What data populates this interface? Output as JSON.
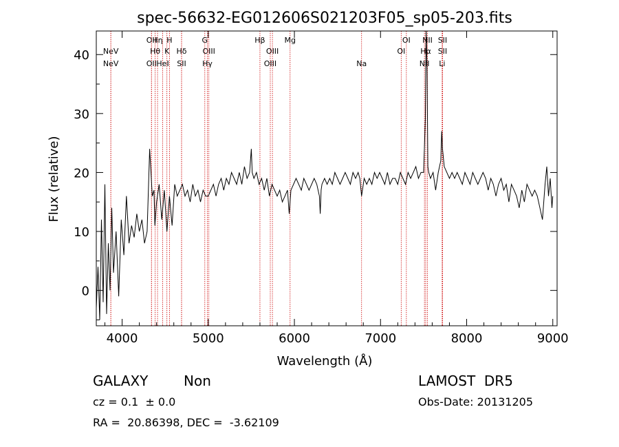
{
  "chart_data": {
    "type": "line",
    "title": "spec-56632-EG012606S021203F05_sp05-203.fits",
    "xlabel": "Wavelength (Å)",
    "ylabel": "Flux (relative)",
    "xlim": [
      3700,
      9050
    ],
    "ylim": [
      -6,
      44
    ],
    "xticks": [
      4000,
      5000,
      6000,
      7000,
      8000,
      9000
    ],
    "yticks": [
      0,
      10,
      20,
      30,
      40
    ],
    "series": [
      {
        "x": [
          3700,
          3720,
          3740,
          3760,
          3780,
          3800,
          3820,
          3840,
          3860,
          3880,
          3900,
          3930,
          3960,
          3990,
          4020,
          4050,
          4080,
          4110,
          4140,
          4170,
          4200,
          4230,
          4260,
          4290,
          4320,
          4350,
          4370,
          4380,
          4400,
          4430,
          4460,
          4490,
          4520,
          4550,
          4580,
          4610,
          4640,
          4670,
          4700,
          4730,
          4760,
          4790,
          4820,
          4850,
          4880,
          4910,
          4940,
          4970,
          5000,
          5030,
          5060,
          5090,
          5120,
          5150,
          5180,
          5210,
          5240,
          5270,
          5300,
          5330,
          5360,
          5390,
          5420,
          5450,
          5480,
          5500,
          5510,
          5530,
          5560,
          5590,
          5620,
          5650,
          5680,
          5710,
          5740,
          5770,
          5800,
          5830,
          5860,
          5890,
          5920,
          5940,
          5960,
          5990,
          6020,
          6050,
          6080,
          6110,
          6140,
          6170,
          6200,
          6230,
          6260,
          6290,
          6300,
          6310,
          6320,
          6350,
          6380,
          6410,
          6440,
          6470,
          6500,
          6530,
          6560,
          6590,
          6620,
          6650,
          6680,
          6710,
          6740,
          6760,
          6780,
          6810,
          6840,
          6870,
          6900,
          6930,
          6960,
          6990,
          7020,
          7050,
          7080,
          7110,
          7140,
          7170,
          7200,
          7230,
          7260,
          7290,
          7320,
          7350,
          7380,
          7410,
          7440,
          7470,
          7500,
          7520,
          7530,
          7540,
          7550,
          7560,
          7580,
          7610,
          7640,
          7670,
          7700,
          7710,
          7720,
          7740,
          7770,
          7800,
          7830,
          7860,
          7890,
          7920,
          7950,
          7980,
          8010,
          8040,
          8070,
          8100,
          8130,
          8160,
          8190,
          8220,
          8250,
          8280,
          8310,
          8340,
          8370,
          8400,
          8430,
          8460,
          8490,
          8520,
          8550,
          8580,
          8610,
          8640,
          8670,
          8700,
          8730,
          8760,
          8790,
          8820,
          8850,
          8880,
          8910,
          8930,
          8950,
          8970,
          8990,
          9000
        ],
        "values": [
          -3,
          4,
          -5,
          12,
          -2,
          18,
          -4,
          8,
          0,
          14,
          3,
          10,
          -1,
          12,
          6,
          16,
          8,
          11,
          9,
          13,
          10,
          12,
          8,
          10,
          24,
          16,
          17,
          11,
          15,
          18,
          12,
          17,
          10,
          16,
          11,
          18,
          16,
          17,
          18,
          16,
          17,
          15,
          18,
          16,
          17,
          15,
          17,
          16,
          16,
          17,
          18,
          16,
          18,
          19,
          17,
          19,
          18,
          20,
          19,
          18,
          20,
          18,
          21,
          19,
          20,
          24,
          20,
          19,
          20,
          18,
          19,
          17,
          19,
          16,
          18,
          17,
          16,
          17,
          15,
          16,
          17,
          13,
          17,
          18,
          19,
          18,
          17,
          19,
          18,
          17,
          18,
          19,
          18,
          16,
          13,
          17,
          18,
          19,
          18,
          19,
          18,
          20,
          19,
          18,
          19,
          20,
          19,
          18,
          20,
          19,
          20,
          19,
          16,
          19,
          18,
          19,
          18,
          20,
          19,
          20,
          19,
          18,
          20,
          18,
          19,
          19,
          18,
          20,
          19,
          18,
          20,
          19,
          20,
          21,
          19,
          20,
          20,
          29,
          46,
          38,
          21,
          20,
          19,
          20,
          17,
          20,
          22,
          27,
          24,
          21,
          20,
          19,
          20,
          19,
          20,
          19,
          18,
          20,
          19,
          18,
          20,
          19,
          18,
          19,
          20,
          19,
          17,
          19,
          18,
          16,
          18,
          19,
          17,
          18,
          15,
          18,
          17,
          16,
          14,
          17,
          15,
          18,
          17,
          16,
          17,
          16,
          14,
          12,
          18,
          21,
          16,
          19,
          14,
          16
        ]
      }
    ],
    "line_markers": [
      {
        "wavelength": 3869,
        "label": "NeV",
        "row": 1
      },
      {
        "wavelength": 3869,
        "label": "NeV",
        "row": 2
      },
      {
        "wavelength": 4341,
        "label": "OII",
        "row": 0
      },
      {
        "wavelength": 4341,
        "label": "OII",
        "row": 2
      },
      {
        "wavelength": 4384,
        "label": "Hθ",
        "row": 1
      },
      {
        "wavelength": 4411,
        "label": "Hη",
        "row": 0
      },
      {
        "wavelength": 4471,
        "label": "HeI",
        "row": 2
      },
      {
        "wavelength": 4520,
        "label": "K",
        "row": 1
      },
      {
        "wavelength": 4550,
        "label": "H",
        "row": 0
      },
      {
        "wavelength": 4690,
        "label": "Hδ",
        "row": 1
      },
      {
        "wavelength": 4690,
        "label": "SII",
        "row": 2
      },
      {
        "wavelength": 4960,
        "label": "G",
        "row": 0
      },
      {
        "wavelength": 5007,
        "label": "OIII",
        "row": 1
      },
      {
        "wavelength": 4990,
        "label": "Hγ",
        "row": 2
      },
      {
        "wavelength": 5600,
        "label": "Hβ",
        "row": 0
      },
      {
        "wavelength": 5745,
        "label": "OIII",
        "row": 1
      },
      {
        "wavelength": 5720,
        "label": "OIII",
        "row": 2
      },
      {
        "wavelength": 5950,
        "label": "Mg",
        "row": 0
      },
      {
        "wavelength": 6780,
        "label": "Na",
        "row": 2
      },
      {
        "wavelength": 7300,
        "label": "OI",
        "row": 0
      },
      {
        "wavelength": 7240,
        "label": "OI",
        "row": 1
      },
      {
        "wavelength": 7545,
        "label": "NII",
        "row": 0
      },
      {
        "wavelength": 7525,
        "label": "Hα",
        "row": 1
      },
      {
        "wavelength": 7510,
        "label": "NII",
        "row": 2
      },
      {
        "wavelength": 7720,
        "label": "SII",
        "row": 0
      },
      {
        "wavelength": 7720,
        "label": "SII",
        "row": 1
      },
      {
        "wavelength": 7715,
        "label": "Li",
        "row": 2
      }
    ],
    "marker_color": "#cc0000",
    "line_color": "#000000",
    "grid": false,
    "legend": "none"
  },
  "footer": {
    "object_class": "GALAXY",
    "subclass": "Non",
    "survey": "LAMOST  DR5",
    "redshift": "cz = 0.1  ± 0.0",
    "obs_date": "Obs-Date: 20131205",
    "coords": "RA =  20.86398, DEC =  -3.62109"
  }
}
